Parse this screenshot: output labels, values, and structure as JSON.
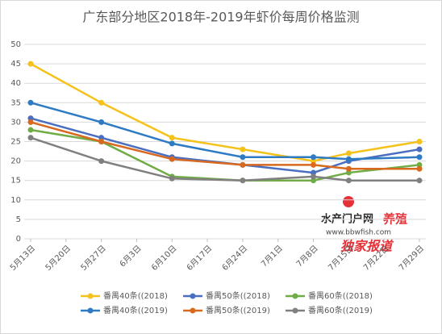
{
  "chart_data": {
    "type": "line",
    "title": "广东部分地区2018年-2019年虾价每周价格监测",
    "xticks": [
      "5月13日",
      "5月20日",
      "5月27日",
      "6月3日",
      "6月10日",
      "6月17日",
      "6月24日",
      "7月1日",
      "7月8日",
      "7月15日",
      "7月22日",
      "7月29日"
    ],
    "x": [
      "5月13日",
      "5月27日",
      "6月10日",
      "6月24日",
      "7月8日",
      "7月15日",
      "7月29日"
    ],
    "series": [
      {
        "name": "番禺40条((2018)",
        "color": "#f5c21b",
        "values": [
          45,
          35,
          26,
          23,
          20,
          22,
          25
        ]
      },
      {
        "name": "番禺50条((2018)",
        "color": "#4a6fc0",
        "values": [
          31,
          26,
          21,
          19,
          17,
          20,
          23
        ]
      },
      {
        "name": "番禺60条((2018)",
        "color": "#70ad47",
        "values": [
          28,
          25,
          16,
          15,
          15,
          17,
          19
        ]
      },
      {
        "name": "番禺40条((2019)",
        "color": "#2e7bc4",
        "values": [
          35,
          30,
          24.5,
          21,
          21,
          20.5,
          21
        ]
      },
      {
        "name": "番禺50条((2019)",
        "color": "#d8691f",
        "values": [
          30,
          25,
          20.5,
          19,
          19,
          18,
          18
        ]
      },
      {
        "name": "番禺60条((2019)",
        "color": "#808080",
        "values": [
          26,
          20,
          15.5,
          15,
          16,
          15,
          15
        ]
      }
    ],
    "ylim": [
      0,
      50
    ],
    "yticks": [
      0,
      5,
      10,
      15,
      20,
      25,
      30,
      35,
      40,
      45,
      50
    ],
    "grid": true,
    "watermark": {
      "site": "水产门户网",
      "brand": "养殖",
      "url": "www.bbwfish.com",
      "tag": "独家报道"
    }
  }
}
